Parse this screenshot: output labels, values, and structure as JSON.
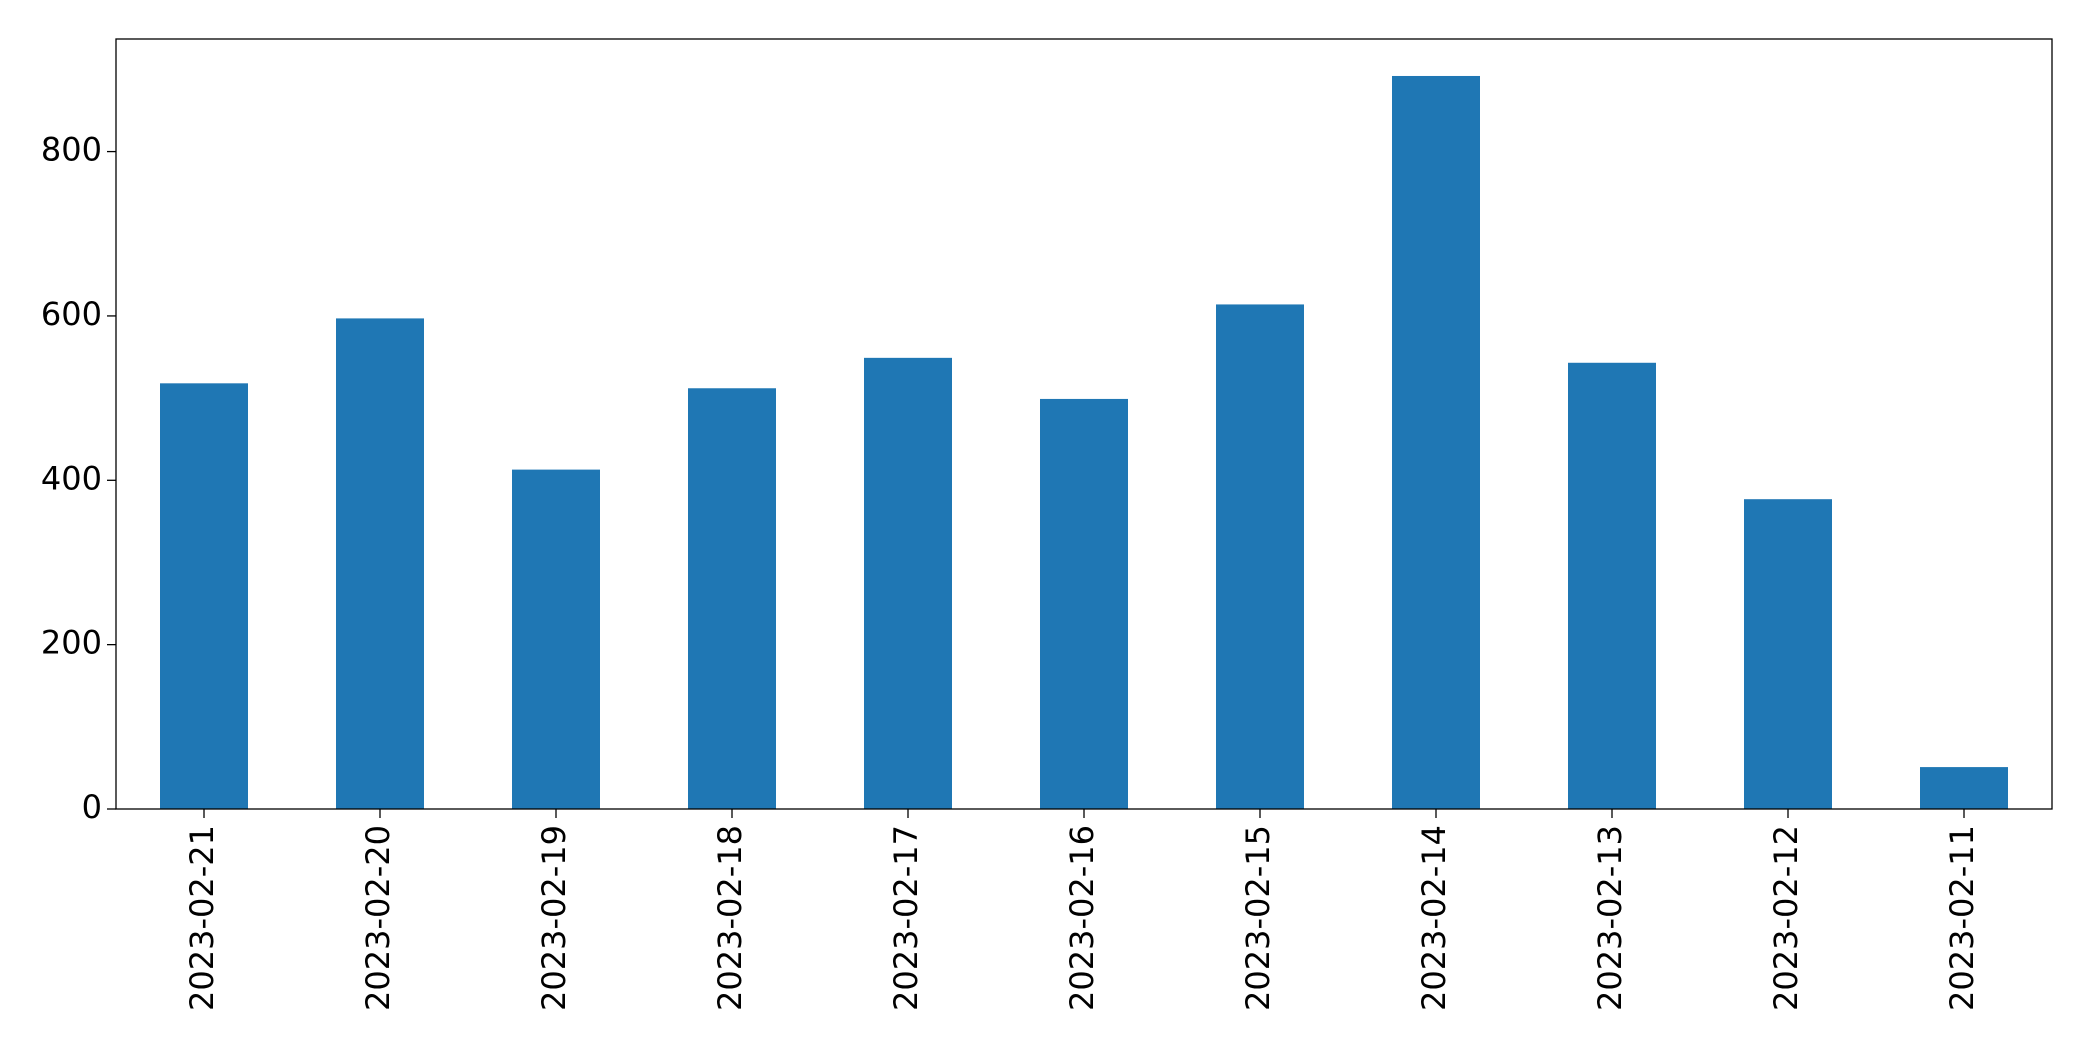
{
  "chart_data": {
    "type": "bar",
    "categories": [
      "2023-02-21",
      "2023-02-20",
      "2023-02-19",
      "2023-02-18",
      "2023-02-17",
      "2023-02-16",
      "2023-02-15",
      "2023-02-14",
      "2023-02-13",
      "2023-02-12",
      "2023-02-11"
    ],
    "values": [
      518,
      597,
      413,
      512,
      549,
      499,
      614,
      892,
      543,
      377,
      51
    ],
    "color": "#1f77b4",
    "ylim": [
      0,
      937
    ],
    "yticks": [
      0,
      200,
      400,
      600,
      800
    ],
    "grid": false
  }
}
